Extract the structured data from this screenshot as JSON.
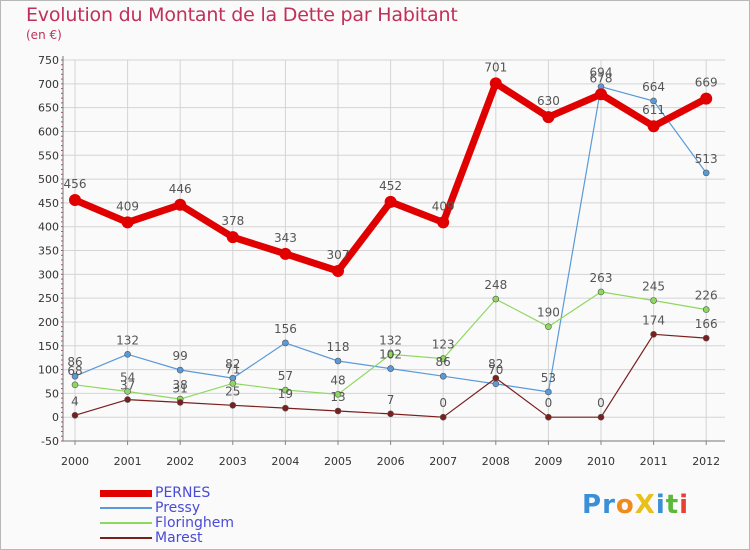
{
  "title": "Evolution du Montant de la Dette par Habitant",
  "unit_label": "(en €)",
  "logo": {
    "text": "Proxiti",
    "letters": [
      {
        "ch": "P",
        "color": "#3a8fd8"
      },
      {
        "ch": "r",
        "color": "#3a8fd8"
      },
      {
        "ch": "o",
        "color": "#f08a1c"
      },
      {
        "ch": "X",
        "color": "#e8c018"
      },
      {
        "ch": "i",
        "color": "#3a8fd8"
      },
      {
        "ch": "t",
        "color": "#5bb83a"
      },
      {
        "ch": "i",
        "color": "#e84030"
      }
    ]
  },
  "chart_data": {
    "type": "line",
    "title": "Evolution du Montant de la Dette par Habitant",
    "ylabel": "(en €)",
    "xlabel": "",
    "ylim": [
      -50,
      750
    ],
    "yticks": [
      -50,
      0,
      50,
      100,
      150,
      200,
      250,
      300,
      350,
      400,
      450,
      500,
      550,
      600,
      650,
      700,
      750
    ],
    "grid": true,
    "legend_position": "bottom-left",
    "categories": [
      "2000",
      "2001",
      "2002",
      "2003",
      "2004",
      "2005",
      "2006",
      "2007",
      "2008",
      "2009",
      "2010",
      "2011",
      "2012"
    ],
    "series": [
      {
        "name": "PERNES",
        "color": "#e00000",
        "width": 7,
        "marker_r": 6,
        "label_dy": -12,
        "values": [
          456,
          409,
          446,
          378,
          343,
          307,
          452,
          409,
          701,
          630,
          678,
          611,
          669
        ]
      },
      {
        "name": "Pressy",
        "color": "#5a9ad8",
        "width": 1.2,
        "marker_r": 3,
        "label_dy": -10,
        "values": [
          86,
          132,
          99,
          82,
          156,
          118,
          102,
          86,
          70,
          53,
          694,
          664,
          513
        ]
      },
      {
        "name": "Floringhem",
        "color": "#8ed860",
        "width": 1.2,
        "marker_r": 3,
        "label_dy": -10,
        "values": [
          68,
          54,
          38,
          71,
          57,
          48,
          132,
          123,
          248,
          190,
          263,
          245,
          226
        ]
      },
      {
        "name": "Marest",
        "color": "#7a1e1e",
        "width": 1.2,
        "marker_r": 3,
        "label_dy": -10,
        "values": [
          4,
          37,
          31,
          25,
          19,
          13,
          7,
          0,
          82,
          0,
          0,
          174,
          166
        ]
      }
    ]
  }
}
